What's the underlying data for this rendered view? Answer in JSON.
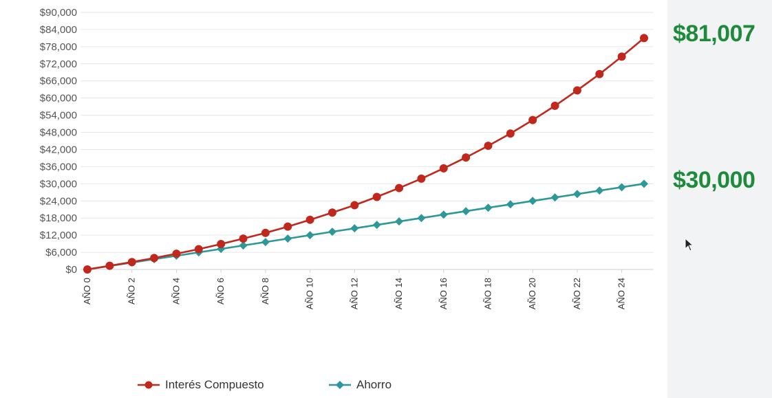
{
  "chart_data": {
    "type": "line",
    "x": [
      "AÑO 0",
      "AÑO 1",
      "AÑO 2",
      "AÑO 3",
      "AÑO 4",
      "AÑO 5",
      "AÑO 6",
      "AÑO 7",
      "AÑO 8",
      "AÑO 9",
      "AÑO 10",
      "AÑO 11",
      "AÑO 12",
      "AÑO 13",
      "AÑO 14",
      "AÑO 15",
      "AÑO 16",
      "AÑO 17",
      "AÑO 18",
      "AÑO 19",
      "AÑO 20",
      "AÑO 21",
      "AÑO 22",
      "AÑO 23",
      "AÑO 24",
      "AÑO 25"
    ],
    "x_tick_labels": [
      "AÑO 0",
      "AÑO 2",
      "AÑO 4",
      "AÑO 6",
      "AÑO 8",
      "AÑO 10",
      "AÑO 12",
      "AÑO 14",
      "AÑO 16",
      "AÑO 18",
      "AÑO 20",
      "AÑO 22",
      "AÑO 24"
    ],
    "series": [
      {
        "name": "Interés Compuesto",
        "color": "#c0281e",
        "marker": "circle",
        "values": [
          0,
          1300,
          2600,
          4000,
          5500,
          7100,
          8900,
          10800,
          12800,
          15000,
          17400,
          19900,
          22500,
          25400,
          28500,
          31800,
          35400,
          39200,
          43300,
          47600,
          52300,
          57300,
          62700,
          68400,
          74500,
          81007
        ]
      },
      {
        "name": "Ahorro",
        "color": "#2e9797",
        "marker": "diamond",
        "values": [
          0,
          1200,
          2400,
          3600,
          4800,
          6000,
          7200,
          8400,
          9600,
          10800,
          12000,
          13200,
          14400,
          15600,
          16800,
          18000,
          19200,
          20400,
          21600,
          22800,
          24000,
          25200,
          26400,
          27600,
          28800,
          30000
        ]
      }
    ],
    "y_ticks": [
      "$0",
      "$6,000",
      "$12,000",
      "$18,000",
      "$24,000",
      "$30,000",
      "$36,000",
      "$42,000",
      "$48,000",
      "$54,000",
      "$60,000",
      "$66,000",
      "$72,000",
      "$78,000",
      "$84,000",
      "$90,000"
    ],
    "ylim": [
      0,
      90000
    ],
    "y_step": 6000,
    "grid": true,
    "legend_position": "bottom",
    "title": "",
    "xlabel": "",
    "ylabel": ""
  },
  "callouts": {
    "compound_final": "$81,007",
    "savings_final": "$30,000",
    "color": "#1e8a3c"
  },
  "legend": {
    "compound_label": "Interés Compuesto",
    "savings_label": "Ahorro"
  }
}
